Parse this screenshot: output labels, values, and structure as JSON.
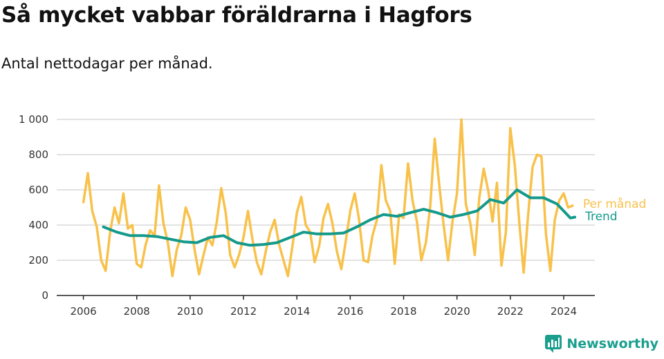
{
  "title": "Så mycket vabbar föräldrarna i Hagfors",
  "subtitle": "Antal nettodagar per månad.",
  "brand": {
    "name": "Newsworthy",
    "icon": "newsworthy-logo-icon",
    "color": "#1a9e8e"
  },
  "chart_data": {
    "type": "line",
    "x_type": "date",
    "xlim": [
      "2005-01-01",
      "2025-03-01"
    ],
    "ylim": [
      0,
      1000
    ],
    "y_ticks": [
      0,
      200,
      400,
      600,
      800,
      1000
    ],
    "y_tick_labels": [
      "0",
      "200",
      "400",
      "600",
      "800",
      "1 000"
    ],
    "x_ticks": [
      "2006-01-01",
      "2008-01-01",
      "2010-01-01",
      "2012-01-01",
      "2014-01-01",
      "2016-01-01",
      "2018-01-01",
      "2020-01-01",
      "2022-01-01",
      "2024-01-01"
    ],
    "x_tick_labels": [
      "2006",
      "2008",
      "2010",
      "2012",
      "2014",
      "2016",
      "2018",
      "2020",
      "2022",
      "2024"
    ],
    "grid": "horizontal",
    "legend": "end-of-line labels",
    "series": [
      {
        "name": "Per månad",
        "color": "#f8c14a",
        "points": [
          [
            "2006-01",
            530
          ],
          [
            "2006-03",
            695
          ],
          [
            "2006-05",
            480
          ],
          [
            "2006-07",
            390
          ],
          [
            "2006-09",
            200
          ],
          [
            "2006-11",
            140
          ],
          [
            "2007-01",
            360
          ],
          [
            "2007-03",
            500
          ],
          [
            "2007-05",
            410
          ],
          [
            "2007-07",
            580
          ],
          [
            "2007-09",
            380
          ],
          [
            "2007-11",
            400
          ],
          [
            "2008-01",
            180
          ],
          [
            "2008-03",
            160
          ],
          [
            "2008-05",
            290
          ],
          [
            "2008-07",
            370
          ],
          [
            "2008-09",
            340
          ],
          [
            "2008-11",
            625
          ],
          [
            "2009-01",
            410
          ],
          [
            "2009-03",
            300
          ],
          [
            "2009-05",
            110
          ],
          [
            "2009-07",
            260
          ],
          [
            "2009-09",
            340
          ],
          [
            "2009-11",
            500
          ],
          [
            "2010-01",
            430
          ],
          [
            "2010-03",
            260
          ],
          [
            "2010-05",
            120
          ],
          [
            "2010-07",
            230
          ],
          [
            "2010-09",
            330
          ],
          [
            "2010-11",
            285
          ],
          [
            "2011-01",
            420
          ],
          [
            "2011-03",
            610
          ],
          [
            "2011-05",
            470
          ],
          [
            "2011-07",
            230
          ],
          [
            "2011-09",
            160
          ],
          [
            "2011-11",
            230
          ],
          [
            "2012-01",
            330
          ],
          [
            "2012-03",
            480
          ],
          [
            "2012-05",
            320
          ],
          [
            "2012-07",
            190
          ],
          [
            "2012-09",
            120
          ],
          [
            "2012-11",
            250
          ],
          [
            "2013-01",
            360
          ],
          [
            "2013-03",
            430
          ],
          [
            "2013-05",
            290
          ],
          [
            "2013-07",
            200
          ],
          [
            "2013-09",
            110
          ],
          [
            "2013-11",
            280
          ],
          [
            "2014-01",
            470
          ],
          [
            "2014-03",
            560
          ],
          [
            "2014-05",
            400
          ],
          [
            "2014-07",
            360
          ],
          [
            "2014-09",
            190
          ],
          [
            "2014-11",
            280
          ],
          [
            "2015-01",
            440
          ],
          [
            "2015-03",
            520
          ],
          [
            "2015-05",
            410
          ],
          [
            "2015-07",
            250
          ],
          [
            "2015-09",
            150
          ],
          [
            "2015-11",
            310
          ],
          [
            "2016-01",
            480
          ],
          [
            "2016-03",
            580
          ],
          [
            "2016-05",
            430
          ],
          [
            "2016-07",
            200
          ],
          [
            "2016-09",
            190
          ],
          [
            "2016-11",
            340
          ],
          [
            "2017-01",
            430
          ],
          [
            "2017-03",
            740
          ],
          [
            "2017-05",
            540
          ],
          [
            "2017-07",
            480
          ],
          [
            "2017-09",
            180
          ],
          [
            "2017-11",
            460
          ],
          [
            "2018-01",
            440
          ],
          [
            "2018-03",
            750
          ],
          [
            "2018-05",
            540
          ],
          [
            "2018-07",
            420
          ],
          [
            "2018-09",
            200
          ],
          [
            "2018-11",
            300
          ],
          [
            "2019-01",
            510
          ],
          [
            "2019-03",
            890
          ],
          [
            "2019-05",
            630
          ],
          [
            "2019-07",
            400
          ],
          [
            "2019-09",
            200
          ],
          [
            "2019-11",
            420
          ],
          [
            "2020-01",
            580
          ],
          [
            "2020-03",
            1000
          ],
          [
            "2020-05",
            520
          ],
          [
            "2020-07",
            410
          ],
          [
            "2020-09",
            230
          ],
          [
            "2020-11",
            550
          ],
          [
            "2021-01",
            720
          ],
          [
            "2021-03",
            600
          ],
          [
            "2021-05",
            420
          ],
          [
            "2021-07",
            640
          ],
          [
            "2021-09",
            170
          ],
          [
            "2021-11",
            360
          ],
          [
            "2022-01",
            950
          ],
          [
            "2022-03",
            740
          ],
          [
            "2022-05",
            420
          ],
          [
            "2022-07",
            130
          ],
          [
            "2022-09",
            460
          ],
          [
            "2022-11",
            730
          ],
          [
            "2023-01",
            800
          ],
          [
            "2023-03",
            790
          ],
          [
            "2023-05",
            350
          ],
          [
            "2023-07",
            140
          ],
          [
            "2023-09",
            430
          ],
          [
            "2023-11",
            540
          ],
          [
            "2024-01",
            580
          ],
          [
            "2024-03",
            500
          ],
          [
            "2024-05",
            510
          ]
        ]
      },
      {
        "name": "Trend",
        "color": "#14998a",
        "points": [
          [
            "2006-10",
            390
          ],
          [
            "2007-04",
            360
          ],
          [
            "2007-10",
            340
          ],
          [
            "2008-04",
            340
          ],
          [
            "2008-10",
            335
          ],
          [
            "2009-04",
            320
          ],
          [
            "2009-10",
            305
          ],
          [
            "2010-04",
            300
          ],
          [
            "2010-10",
            330
          ],
          [
            "2011-04",
            340
          ],
          [
            "2011-10",
            300
          ],
          [
            "2012-04",
            285
          ],
          [
            "2012-10",
            290
          ],
          [
            "2013-04",
            300
          ],
          [
            "2013-10",
            330
          ],
          [
            "2014-04",
            360
          ],
          [
            "2014-10",
            350
          ],
          [
            "2015-04",
            350
          ],
          [
            "2015-10",
            355
          ],
          [
            "2016-04",
            390
          ],
          [
            "2016-10",
            430
          ],
          [
            "2017-04",
            460
          ],
          [
            "2017-10",
            450
          ],
          [
            "2018-04",
            470
          ],
          [
            "2018-10",
            490
          ],
          [
            "2019-04",
            470
          ],
          [
            "2019-10",
            445
          ],
          [
            "2020-04",
            460
          ],
          [
            "2020-10",
            480
          ],
          [
            "2021-04",
            545
          ],
          [
            "2021-10",
            525
          ],
          [
            "2022-04",
            600
          ],
          [
            "2022-10",
            555
          ],
          [
            "2023-04",
            555
          ],
          [
            "2023-10",
            520
          ],
          [
            "2024-04",
            440
          ],
          [
            "2024-06",
            445
          ]
        ]
      }
    ]
  }
}
